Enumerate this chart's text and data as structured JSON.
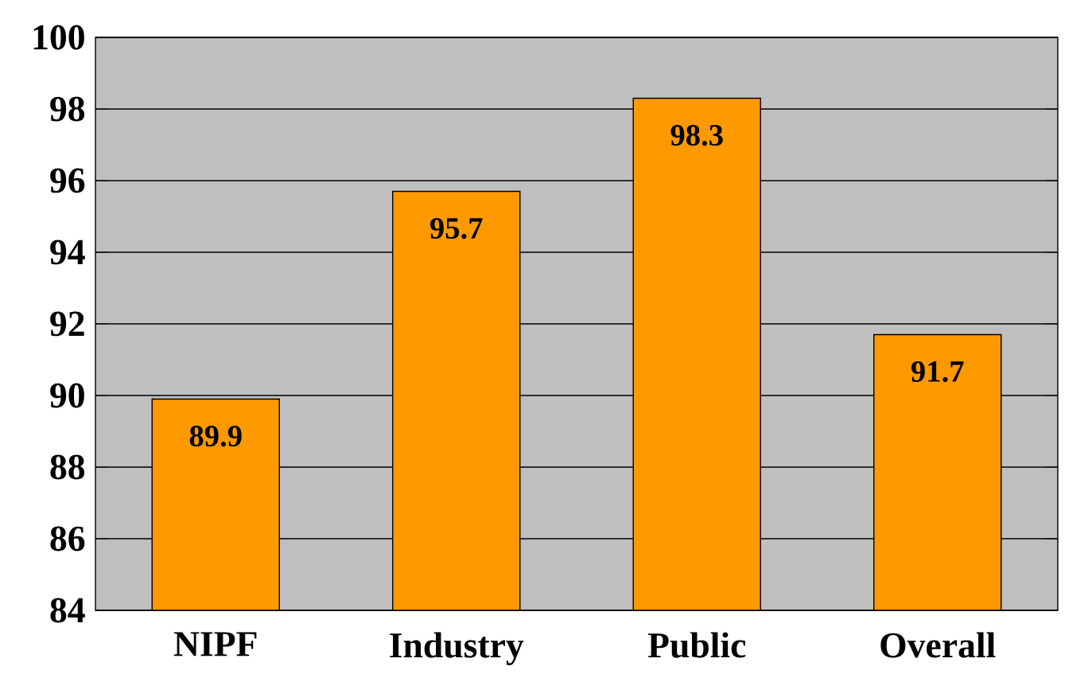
{
  "chart_data": {
    "type": "bar",
    "categories": [
      "NIPF",
      "Industry",
      "Public",
      "Overall"
    ],
    "values": [
      89.9,
      95.7,
      98.3,
      91.7
    ],
    "color": "#ff9900",
    "ylim": [
      84,
      100
    ],
    "yticks": [
      84,
      86,
      88,
      90,
      92,
      94,
      96,
      98,
      100
    ],
    "grid": "y",
    "data_labels": true
  }
}
